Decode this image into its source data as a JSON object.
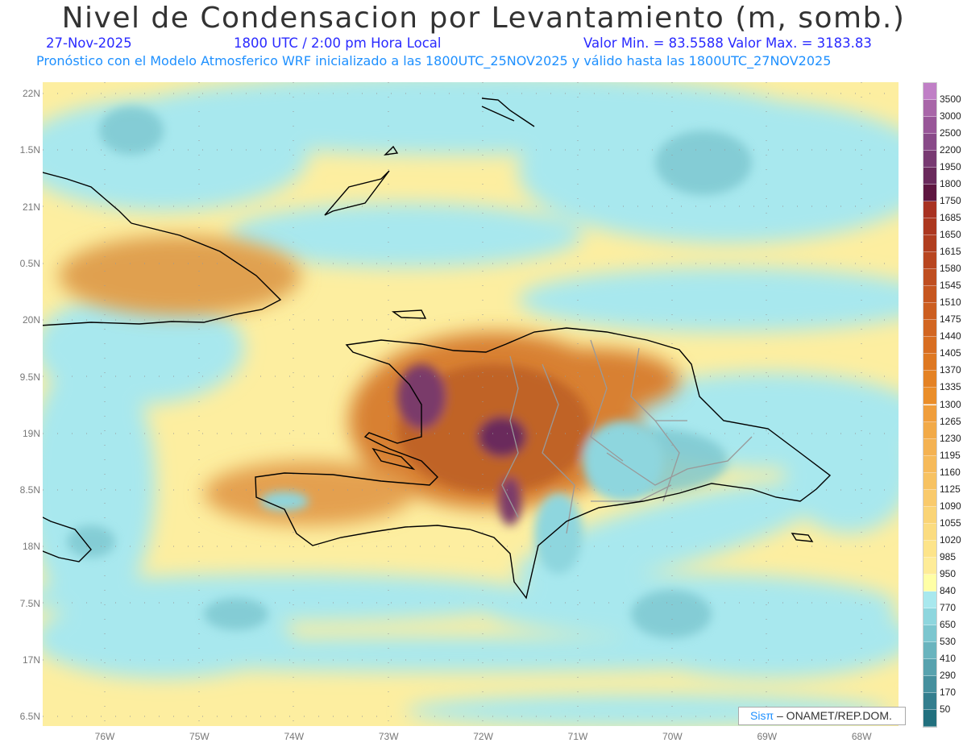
{
  "header": {
    "title": "Nivel de Condensacion por Levantamiento (m, somb.)",
    "date": "27-Nov-2025",
    "time": "1800 UTC / 2:00 pm Hora Local",
    "minmax": "Valor Min. = 83.5588  Valor Max. = 3183.83",
    "forecast": "Pronóstico con el Modelo Atmosferico WRF inicializado a las 1800UTC_25NOV2025 y válido hasta las  1800UTC_27NOV2025"
  },
  "axes": {
    "lat_labels": [
      "22N",
      "1.5N",
      "21N",
      "0.5N",
      "20N",
      "9.5N",
      "19N",
      "8.5N",
      "18N",
      "7.5N",
      "17N",
      "6.5N"
    ],
    "lon_labels": [
      "76W",
      "75W",
      "74W",
      "73W",
      "72W",
      "71W",
      "70W",
      "69W",
      "68W"
    ]
  },
  "colorbar": {
    "labels": [
      "3500",
      "3000",
      "2500",
      "2200",
      "1950",
      "1800",
      "1750",
      "1685",
      "1650",
      "1615",
      "1580",
      "1545",
      "1510",
      "1475",
      "1440",
      "1405",
      "1370",
      "1335",
      "1300",
      "1265",
      "1230",
      "1195",
      "1160",
      "1125",
      "1090",
      "1055",
      "1020",
      "985",
      "950",
      "840",
      "770",
      "650",
      "530",
      "410",
      "290",
      "170",
      "50"
    ],
    "colors": [
      "#c07fc6",
      "#a866a8",
      "#985698",
      "#884a88",
      "#783a72",
      "#6a2a5c",
      "#5e1640",
      "#a83222",
      "#ac3820",
      "#b03e20",
      "#b84620",
      "#bf4e20",
      "#c65620",
      "#cc5e20",
      "#d26622",
      "#d86e22",
      "#de7822",
      "#e48224",
      "#ea8e2a",
      "#f09e3c",
      "#f2aa48",
      "#f4b252",
      "#f6ba5a",
      "#f7c262",
      "#f9ca6c",
      "#fad476",
      "#fbdc80",
      "#fde48a",
      "#feec98",
      "#ffffa6",
      "#a8e8ee",
      "#8ed6de",
      "#7cc6cf",
      "#6ab4be",
      "#58a2ae",
      "#46909e",
      "#347e8e",
      "#22707e"
    ]
  },
  "credit": {
    "brand": "Sisπ",
    "org": " –  ONAMET/REP.DOM."
  }
}
